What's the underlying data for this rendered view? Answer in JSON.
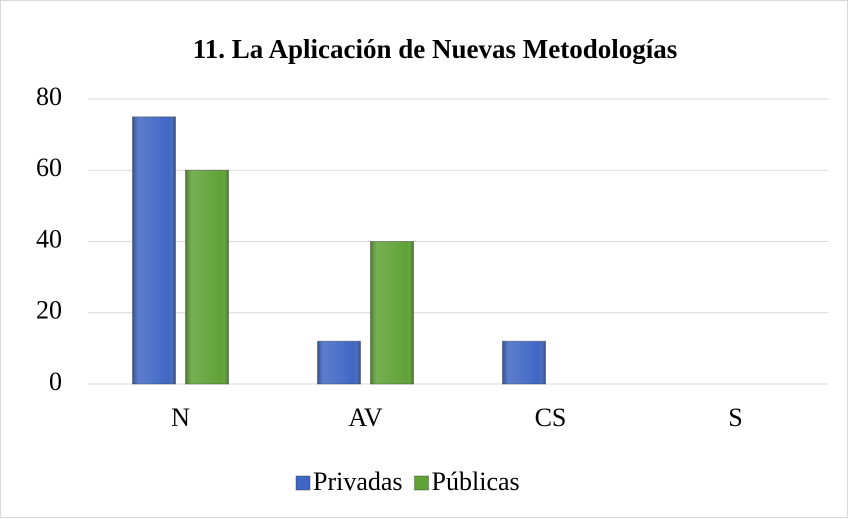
{
  "chart_data": {
    "type": "bar",
    "title": "11. La Aplicación de Nuevas Metodologías",
    "categories": [
      "N",
      "AV",
      "CS",
      "S"
    ],
    "series": [
      {
        "name": "Privadas",
        "color": "#3f67c4",
        "values": [
          75,
          12,
          12,
          0
        ]
      },
      {
        "name": "Públicas",
        "color": "#5fa236",
        "values": [
          60,
          40,
          0,
          0
        ]
      }
    ],
    "ylim": [
      0,
      80
    ],
    "yticks": [
      0,
      20,
      40,
      60,
      80
    ],
    "grid": true,
    "legend": "bottom"
  }
}
